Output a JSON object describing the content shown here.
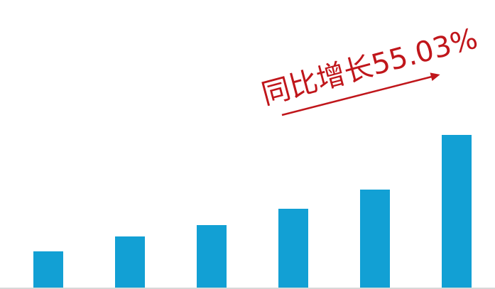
{
  "chart_data": {
    "type": "bar",
    "categories": [
      "",
      "",
      "",
      "",
      "",
      ""
    ],
    "values": [
      52,
      73,
      89,
      112,
      139,
      216
    ],
    "ylim": [
      0,
      220
    ],
    "grid": false,
    "legend": "none",
    "bar_color": "#12A0D4",
    "baseline_color": "#d8d8d8",
    "annotation": {
      "text": "同比增长55.03%",
      "color": "#C0161B"
    }
  }
}
